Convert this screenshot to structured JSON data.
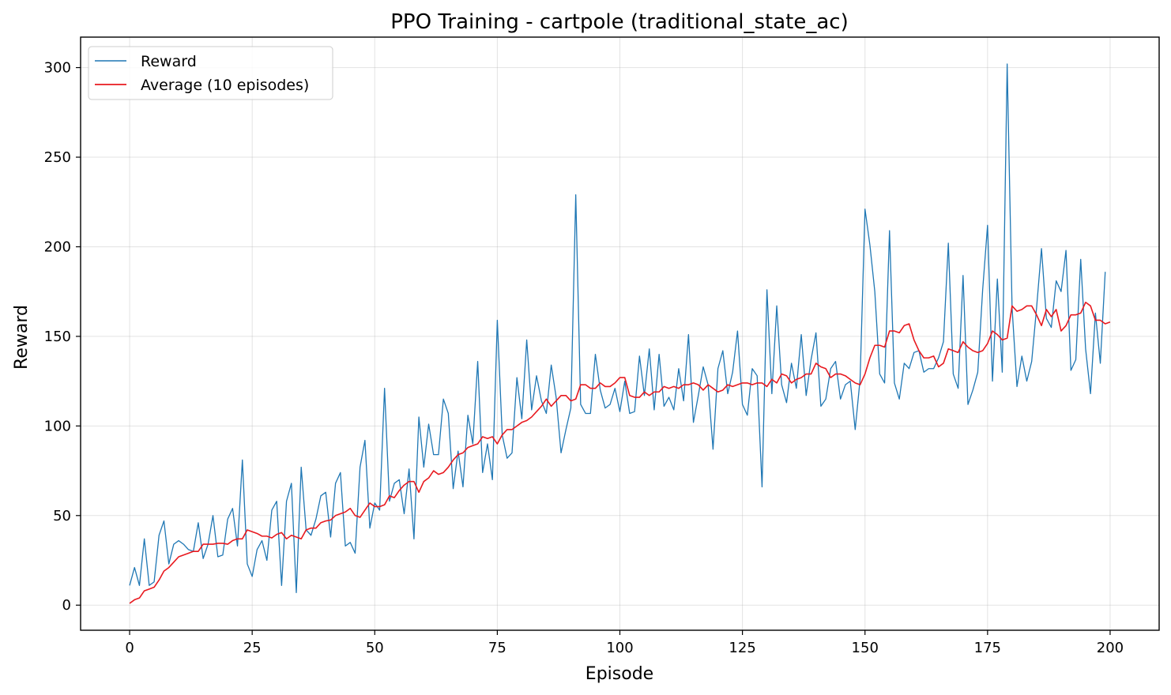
{
  "chart_data": {
    "type": "line",
    "title": "PPO Training - cartpole (traditional_state_ac)",
    "xlabel": "Episode",
    "ylabel": "Reward",
    "xlim": [
      -10,
      210
    ],
    "ylim": [
      -14,
      317
    ],
    "xticks": [
      0,
      25,
      50,
      75,
      100,
      125,
      150,
      175,
      200
    ],
    "yticks": [
      0,
      50,
      100,
      150,
      200,
      250,
      300
    ],
    "grid": true,
    "legend_position": "top-left",
    "series": [
      {
        "name": "Reward",
        "color": "#1f77b4",
        "x_start": 0,
        "values": [
          11,
          21,
          11,
          37,
          11,
          13,
          39,
          47,
          23,
          34,
          36,
          34,
          31,
          30,
          46,
          26,
          34,
          50,
          27,
          28,
          48,
          54,
          33,
          81,
          23,
          16,
          31,
          36,
          25,
          53,
          58,
          11,
          58,
          68,
          7,
          77,
          42,
          39,
          48,
          61,
          63,
          38,
          68,
          74,
          33,
          35,
          29,
          77,
          92,
          43,
          57,
          53,
          121,
          58,
          68,
          70,
          51,
          76,
          37,
          105,
          77,
          101,
          84,
          84,
          115,
          107,
          65,
          86,
          66,
          106,
          90,
          136,
          74,
          90,
          70,
          159,
          95,
          82,
          85,
          127,
          104,
          148,
          109,
          128,
          114,
          107,
          134,
          116,
          85,
          98,
          110,
          229,
          112,
          107,
          107,
          140,
          120,
          110,
          112,
          121,
          108,
          125,
          107,
          108,
          139,
          117,
          143,
          109,
          140,
          111,
          116,
          109,
          132,
          114,
          151,
          102,
          117,
          133,
          123,
          87,
          132,
          142,
          118,
          130,
          153,
          112,
          106,
          132,
          128,
          66,
          176,
          118,
          167,
          123,
          113,
          135,
          121,
          151,
          117,
          137,
          152,
          111,
          115,
          132,
          136,
          115,
          123,
          125,
          98,
          126,
          221,
          201,
          175,
          129,
          124,
          209,
          124,
          115,
          135,
          132,
          141,
          142,
          130,
          132,
          132,
          138,
          147,
          202,
          129,
          121,
          184,
          112,
          120,
          130,
          176,
          212,
          125,
          182,
          130,
          302,
          166,
          122,
          139,
          125,
          136,
          166,
          199,
          160,
          155,
          181,
          175,
          198,
          131,
          137,
          193,
          143,
          118,
          163,
          135,
          186
        ]
      },
      {
        "name": "Average (10 episodes)",
        "color": "#e8191f",
        "x_start": 0,
        "values": [
          1,
          3,
          4,
          8,
          9,
          10,
          14,
          19,
          21,
          24,
          27,
          28,
          29,
          30,
          30,
          34,
          34,
          34,
          34.5,
          34.5,
          34,
          36,
          37,
          37,
          42,
          41,
          40,
          38.5,
          38.5,
          37.5,
          39.5,
          40.5,
          37,
          39,
          38,
          37,
          42,
          43,
          43,
          46,
          47,
          47.5,
          50,
          51,
          52,
          54,
          50,
          49,
          53,
          57,
          55,
          55,
          56,
          61,
          60,
          64,
          67,
          69,
          69,
          63,
          69,
          71,
          75,
          73,
          74,
          77,
          81,
          84,
          85,
          88,
          89,
          90,
          94,
          93,
          94,
          90,
          95,
          98,
          98,
          100,
          102,
          103,
          105,
          108,
          111,
          115,
          111,
          114,
          117,
          117,
          114,
          115,
          123,
          123,
          121,
          121,
          124,
          122,
          122,
          124,
          127,
          127,
          117,
          116,
          116,
          119,
          117,
          119,
          119,
          122,
          121,
          122,
          121,
          123,
          123,
          124,
          123,
          120,
          123,
          121,
          119,
          120,
          123,
          122,
          123,
          124,
          124,
          123,
          124,
          124,
          122,
          126,
          124,
          129,
          128,
          124,
          126,
          127,
          129,
          129,
          135,
          133,
          132,
          127,
          129,
          129,
          128,
          126,
          124,
          123,
          129,
          138,
          145,
          145,
          144,
          153,
          153,
          152,
          156,
          157,
          148,
          142,
          138,
          138,
          139,
          133,
          135,
          143,
          142,
          141,
          147,
          144,
          142,
          141,
          142,
          146,
          153,
          151,
          148,
          149,
          167,
          164,
          165,
          167,
          167,
          162,
          156,
          165,
          161,
          165,
          153,
          156,
          162,
          162,
          163,
          169,
          167,
          159,
          159,
          157,
          158
        ]
      }
    ]
  }
}
